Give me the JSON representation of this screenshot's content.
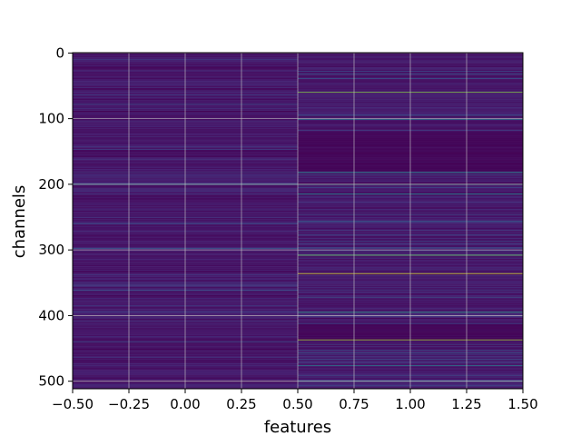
{
  "chart_data": {
    "type": "heatmap",
    "colormap": "viridis",
    "xlabel": "features",
    "ylabel": "channels",
    "x_ticks": [
      "−0.50",
      "−0.25",
      "0.00",
      "0.25",
      "0.50",
      "0.75",
      "1.00",
      "1.25",
      "1.50"
    ],
    "x_tick_values": [
      -0.5,
      -0.25,
      0.0,
      0.25,
      0.5,
      0.75,
      1.0,
      1.25,
      1.5
    ],
    "y_ticks": [
      "0",
      "100",
      "200",
      "300",
      "400",
      "500"
    ],
    "y_tick_values": [
      0,
      100,
      200,
      300,
      400,
      500
    ],
    "xlim": [
      -0.5,
      1.5
    ],
    "ylim": [
      511.5,
      -0.5
    ],
    "n_rows": 512,
    "columns": [
      0,
      1
    ],
    "grid": true,
    "column_profiles": [
      {
        "column": 0,
        "base_level": 0.1,
        "variation": 0.12,
        "highlights": [
          {
            "row": 200,
            "value": 0.55
          },
          {
            "row": 78,
            "value": 0.3
          },
          {
            "row": 260,
            "value": 0.3
          },
          {
            "row": 298,
            "value": 0.35
          }
        ]
      },
      {
        "column": 1,
        "base_level": 0.08,
        "variation": 0.2,
        "dark_bands": [
          [
            120,
            180
          ],
          [
            415,
            438
          ]
        ],
        "highlights": [
          {
            "row": 60,
            "value": 0.8
          },
          {
            "row": 101,
            "value": 0.45
          },
          {
            "row": 182,
            "value": 0.5
          },
          {
            "row": 200,
            "value": 0.6
          },
          {
            "row": 215,
            "value": 0.5
          },
          {
            "row": 308,
            "value": 0.75
          },
          {
            "row": 336,
            "value": 0.95
          },
          {
            "row": 395,
            "value": 0.55
          },
          {
            "row": 437,
            "value": 0.85
          },
          {
            "row": 476,
            "value": 0.45
          },
          {
            "row": 500,
            "value": 0.5
          }
        ]
      }
    ]
  }
}
